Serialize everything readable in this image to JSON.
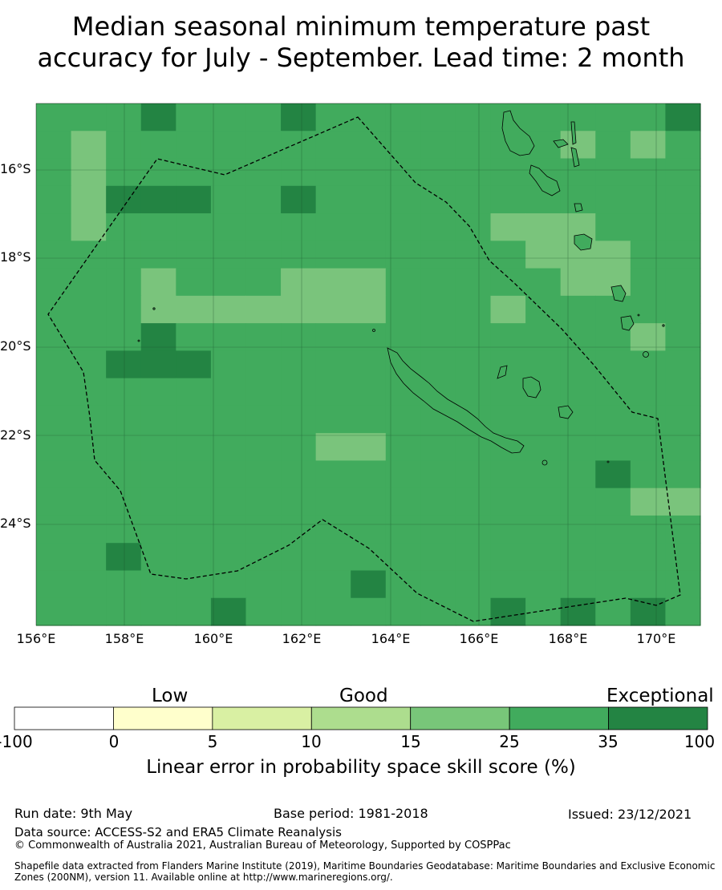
{
  "title_line1": "Median seasonal minimum temperature past",
  "title_line2": "accuracy for July - September. Lead time: 2 month",
  "map": {
    "lat_labels": [
      "16°S",
      "18°S",
      "20°S",
      "22°S",
      "24°S"
    ],
    "lon_labels": [
      "156°E",
      "158°E",
      "160°E",
      "162°E",
      "164°E",
      "166°E",
      "168°E",
      "170°E"
    ],
    "colors": {
      "c15": "#7ac47c",
      "c25": "#41ab5d",
      "c35": "#238443",
      "land": "#41ab5d",
      "boundary": "#000000"
    },
    "grid_rows": [
      "1112111211111111112",
      "1011111331111110101",
      "1011111331111111111",
      "1022211211111111111",
      "1011111111311000111",
      "1111111111113100011",
      "1110111000111110011",
      "1110000000111011111",
      "1112111111111111101",
      "1122211111111111111",
      "1111111111111111111",
      "1111111111111111111",
      "1111111100111111111",
      "1111111111111111211",
      "1111111111111111100",
      "1111111111111111111",
      "1121111111111111111",
      "1111111112111111111",
      "1111121111111212121"
    ]
  },
  "legend": {
    "categories": [
      "Low",
      "Good",
      "Exceptional"
    ],
    "ticks": [
      "-100",
      "0",
      "5",
      "10",
      "15",
      "25",
      "35",
      "100"
    ],
    "colors": [
      "#ffffff",
      "#ffffcc",
      "#d9f0a3",
      "#addd8e",
      "#78c679",
      "#41ab5d",
      "#238443"
    ],
    "title": "Linear error in probability space skill score (%)"
  },
  "footer": {
    "run_date": "Run date: 9th May",
    "base_period": "Base period: 1981-2018",
    "issued": "Issued: 23/12/2021",
    "data_source": "Data source: ACCESS-S2 and ERA5 Climate Reanalysis",
    "copyright": "© Commonwealth of Australia 2021, Australian Bureau of Meteorology, Supported by COSPPac",
    "shapefile": "Shapefile data extracted from Flanders Marine Institute (2019), Maritime Boundaries Geodatabase: Maritime Boundaries and Exclusive Economic Zones (200NM), version 11. Available online at http://www.marineregions.org/."
  }
}
